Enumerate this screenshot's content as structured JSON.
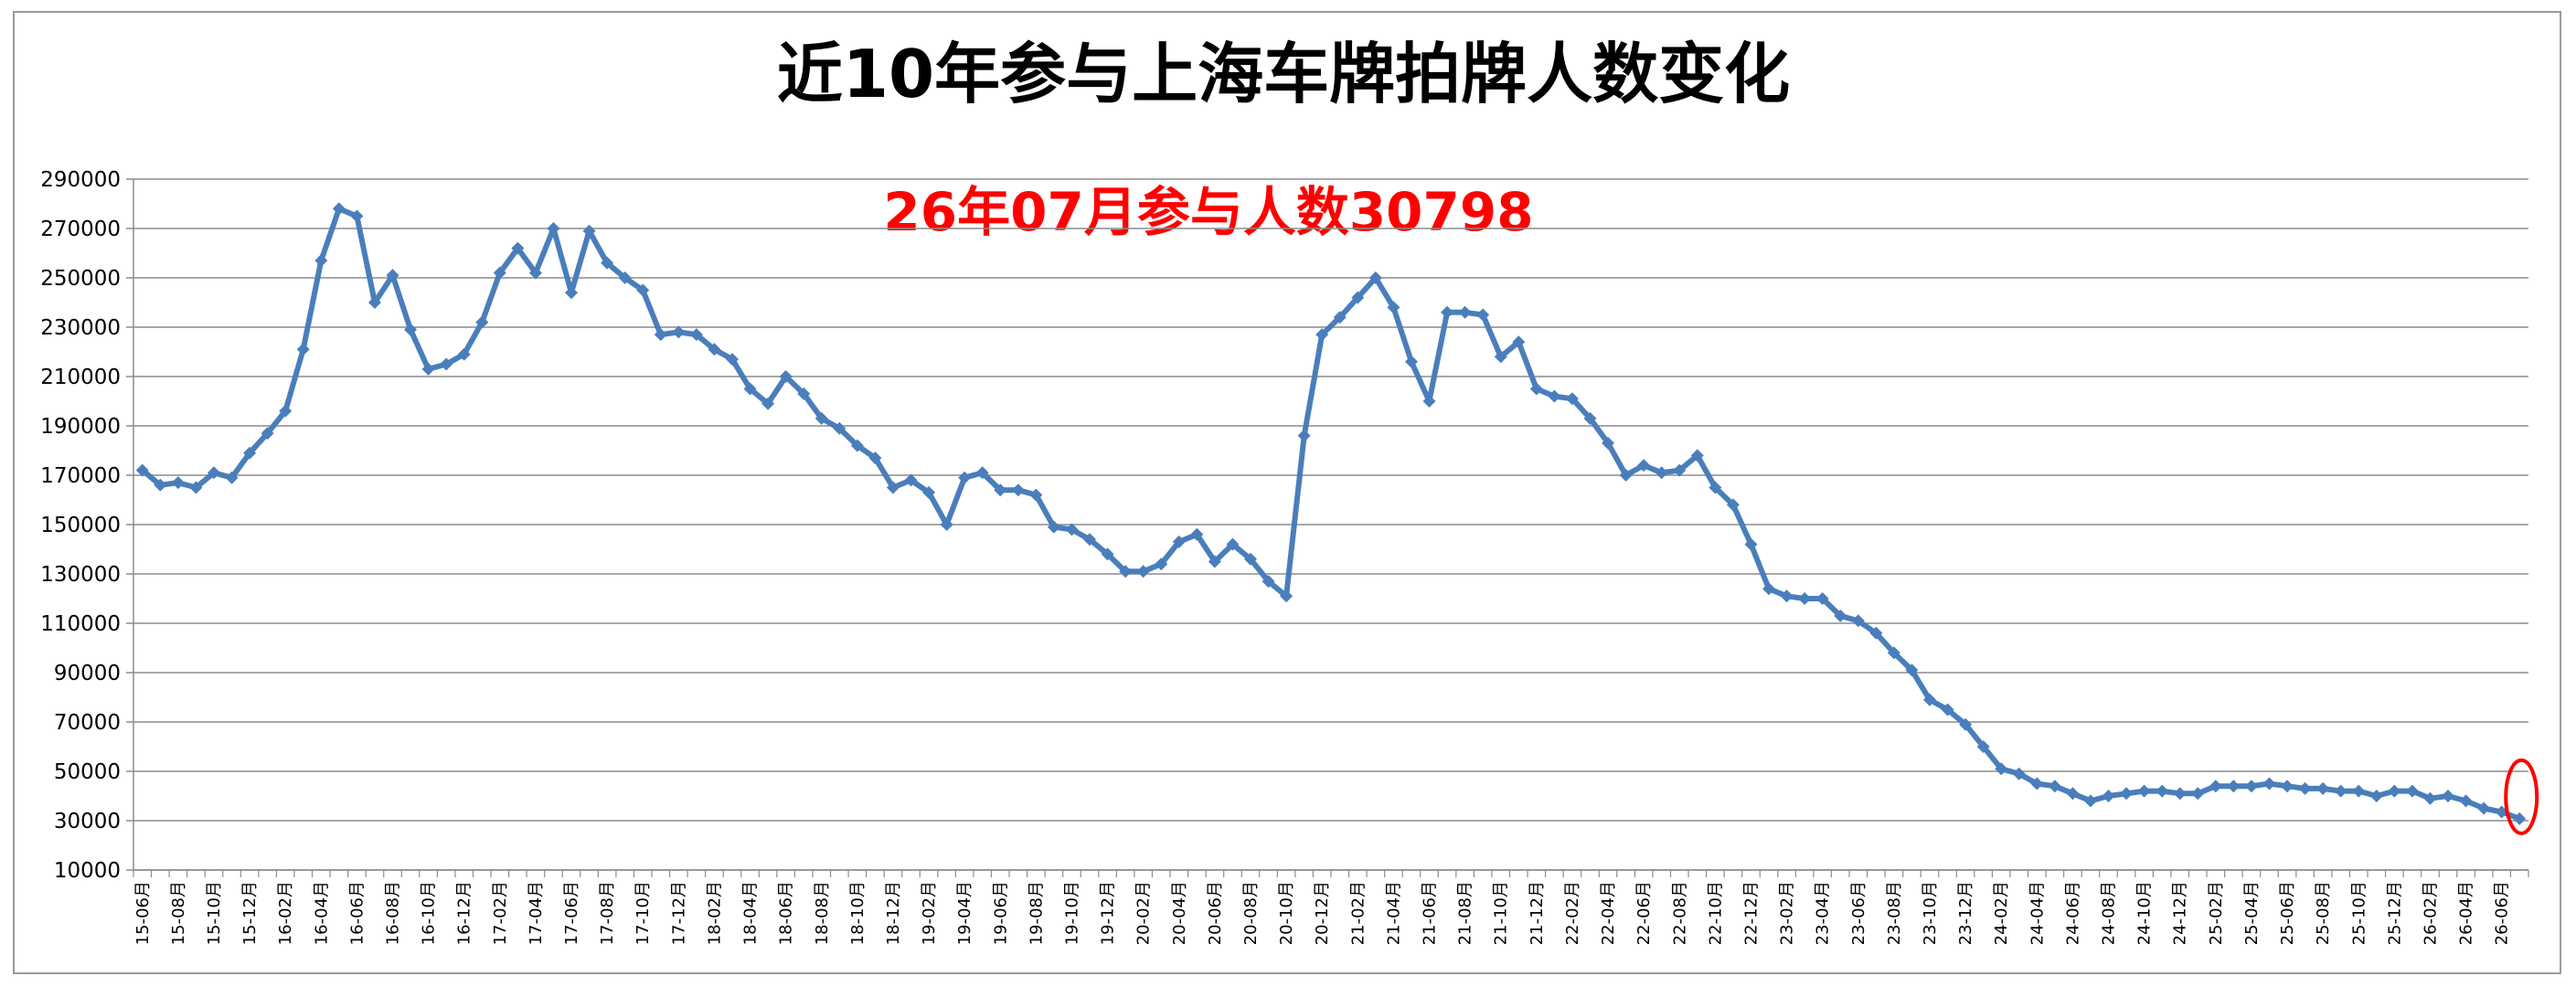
{
  "chart_data": {
    "type": "line",
    "title": "近10年参与上海车牌拍牌人数变化",
    "annotation": "26年07月参与人数30798",
    "annotation_color": "#ff0000",
    "line_color": "#4a7ebb",
    "highlight_color": "#ff0000",
    "xlabel": "",
    "ylabel": "",
    "ylim": [
      10000,
      290000
    ],
    "yticks": [
      10000,
      30000,
      50000,
      70000,
      90000,
      110000,
      130000,
      150000,
      170000,
      190000,
      210000,
      230000,
      250000,
      270000,
      290000
    ],
    "grid": true,
    "legend": "none",
    "x": [
      "15-06月",
      "15-07月",
      "15-08月",
      "15-09月",
      "15-10月",
      "15-11月",
      "15-12月",
      "16-01月",
      "16-02月",
      "16-03月",
      "16-04月",
      "16-05月",
      "16-06月",
      "16-07月",
      "16-08月",
      "16-09月",
      "16-10月",
      "16-11月",
      "16-12月",
      "17-01月",
      "17-02月",
      "17-03月",
      "17-04月",
      "17-05月",
      "17-06月",
      "17-07月",
      "17-08月",
      "17-09月",
      "17-10月",
      "17-11月",
      "17-12月",
      "18-01月",
      "18-02月",
      "18-03月",
      "18-04月",
      "18-05月",
      "18-06月",
      "18-07月",
      "18-08月",
      "18-09月",
      "18-10月",
      "18-11月",
      "18-12月",
      "19-01月",
      "19-02月",
      "19-03月",
      "19-04月",
      "19-05月",
      "19-06月",
      "19-07月",
      "19-08月",
      "19-09月",
      "19-10月",
      "19-11月",
      "19-12月",
      "20-01月",
      "20-02月",
      "20-03月",
      "20-04月",
      "20-05月",
      "20-06月",
      "20-07月",
      "20-08月",
      "20-09月",
      "20-10月",
      "20-11月",
      "20-12月",
      "21-01月",
      "21-02月",
      "21-03月",
      "21-04月",
      "21-05月",
      "21-06月",
      "21-07月",
      "21-08月",
      "21-09月",
      "21-10月",
      "21-11月",
      "21-12月",
      "22-01月",
      "22-02月",
      "22-03月",
      "22-04月",
      "22-05月",
      "22-06月",
      "22-07月",
      "22-08月",
      "22-09月",
      "22-10月",
      "22-11月",
      "22-12月",
      "23-01月",
      "23-02月",
      "23-03月",
      "23-04月",
      "23-05月",
      "23-06月",
      "23-07月",
      "23-08月",
      "23-09月",
      "23-10月",
      "23-11月",
      "23-12月",
      "24-01月",
      "24-02月",
      "24-03月",
      "24-04月",
      "24-05月",
      "24-06月",
      "24-07月",
      "24-08月",
      "24-09月",
      "24-10月",
      "24-11月",
      "24-12月",
      "25-01月",
      "25-02月",
      "25-03月",
      "25-04月",
      "25-05月",
      "25-06月",
      "25-07月",
      "25-08月",
      "25-09月",
      "25-10月",
      "25-11月",
      "25-12月",
      "26-01月",
      "26-02月",
      "26-03月",
      "26-04月",
      "26-05月",
      "26-06月",
      "26-07月"
    ],
    "x_tick_labels": [
      "15-06月",
      "15-08月",
      "15-10月",
      "15-12月",
      "16-02月",
      "16-04月",
      "16-06月",
      "16-08月",
      "16-10月",
      "16-12月",
      "17-02月",
      "17-04月",
      "17-06月",
      "17-08月",
      "17-10月",
      "17-12月",
      "18-02月",
      "18-04月",
      "18-06月",
      "18-08月",
      "18-10月",
      "18-12月",
      "19-02月",
      "19-04月",
      "19-06月",
      "19-08月",
      "19-10月",
      "19-12月",
      "20-02月",
      "20-04月",
      "20-06月",
      "20-08月",
      "20-10月",
      "20-12月",
      "21-02月",
      "21-04月",
      "21-06月",
      "21-08月",
      "21-10月",
      "21-12月",
      "22-02月",
      "22-04月",
      "22-06月",
      "22-08月",
      "22-10月",
      "22-12月",
      "23-02月",
      "23-04月",
      "23-06月",
      "23-08月",
      "23-10月",
      "23-12月",
      "24-02月",
      "24-04月",
      "24-06月",
      "24-08月",
      "24-10月",
      "24-12月",
      "25-02月",
      "25-04月",
      "25-06月",
      "25-08月",
      "25-10月",
      "25-12月",
      "26-02月",
      "26-04月",
      "26-06月"
    ],
    "values": [
      172000,
      166000,
      167000,
      165000,
      171000,
      169000,
      179000,
      187000,
      196000,
      221000,
      257000,
      278000,
      275000,
      240000,
      251000,
      229000,
      213000,
      215000,
      219000,
      232000,
      252000,
      262000,
      252000,
      270000,
      244000,
      269000,
      256000,
      250000,
      245000,
      227000,
      228000,
      227000,
      221000,
      217000,
      205000,
      199000,
      210000,
      203000,
      193000,
      189000,
      182000,
      177000,
      165000,
      168000,
      163000,
      150000,
      169000,
      171000,
      164000,
      164000,
      162000,
      149000,
      148000,
      144000,
      138000,
      131000,
      131000,
      134000,
      143000,
      146000,
      135000,
      142000,
      136000,
      127000,
      121000,
      186000,
      227000,
      234000,
      242000,
      250000,
      238000,
      216000,
      200000,
      236000,
      236000,
      235000,
      218000,
      224000,
      205000,
      202000,
      201000,
      193000,
      183000,
      170000,
      174000,
      171000,
      172000,
      178000,
      165000,
      158000,
      142000,
      124000,
      121000,
      120000,
      120000,
      113000,
      111000,
      106000,
      98000,
      91000,
      79000,
      75000,
      69000,
      60000,
      51000,
      49000,
      45000,
      44000,
      41000,
      38000,
      40000,
      41000,
      42000,
      42000,
      41000,
      41000,
      44000,
      44000,
      44000,
      45000,
      44000,
      43000,
      43000,
      42000,
      42000,
      40000,
      42000,
      42000,
      39000,
      40000,
      38000,
      35000,
      33500,
      30798
    ]
  }
}
